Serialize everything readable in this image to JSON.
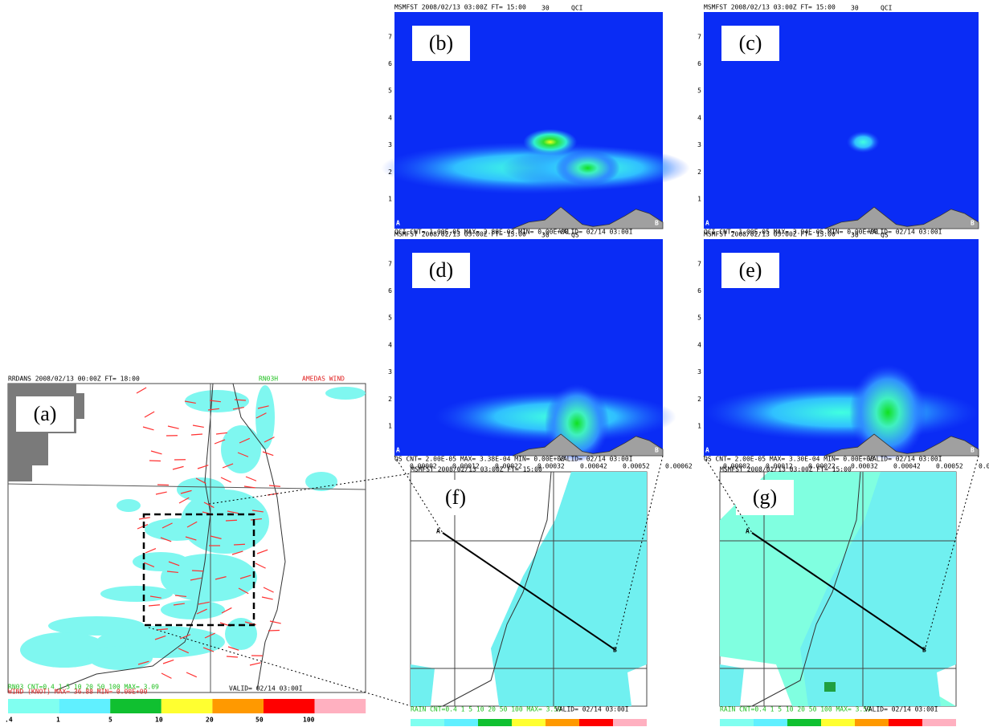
{
  "panel_a": {
    "label": "(a)",
    "header": "RRDANS 2008/02/13 00:00Z FT= 18:00",
    "field": "RN03H",
    "obs": "AMEDAS WIND",
    "footer_1": "RN03   CNT=0.4 1 5 10 20 50 100   MAX=     3.09",
    "footer_2": "WIND    (KNOT)     MAX=     36.88 MIN= 0.00E+00",
    "valid": "VALID= 02/14 03:00I",
    "colorbar_labels": [
      ".4",
      "1",
      "5",
      "10",
      "20",
      "50",
      "100"
    ]
  },
  "cross_sections": [
    {
      "label": "(b)",
      "header": "MSMFST 2008/02/13 03:00Z FT= 15:00",
      "level": "30",
      "field": "QCI",
      "footer": "QCI   CNT= 1.00E-05 MAX= 2.88E-03 MIN= 0.00E+00",
      "valid": "VALID= 02/14 03:00I",
      "end_a": "A",
      "end_b": "B"
    },
    {
      "label": "(c)",
      "header": "MSMFST 2008/02/13 03:00Z FT= 15:00",
      "level": "30",
      "field": "QCI",
      "footer": "QCI   CNT= 1.00E-05 MAX= 3.94E-05 MIN= 0.00E+00",
      "valid": "VALID= 02/14 03:00I",
      "end_a": "A",
      "end_b": "B"
    },
    {
      "label": "(d)",
      "header": "MSMFST 2008/02/13 03:00Z FT= 15:00",
      "level": "30",
      "field": "QS",
      "footer": "QS   CNT= 2.00E-05 MAX= 3.38E-04 MIN= 0.00E+00",
      "valid": "VALID= 02/14 03:00I",
      "end_a": "A",
      "end_b": "B"
    },
    {
      "label": "(e)",
      "header": "MSMFST 2008/02/13 03:00Z FT= 15:00",
      "level": "30",
      "field": "QS",
      "footer": "QS   CNT= 2.00E-05 MAX= 3.30E-04 MIN= 0.00E+00",
      "valid": "VALID= 02/14 03:00I",
      "end_a": "A",
      "end_b": "B"
    }
  ],
  "height_ticks": [
    "1",
    "2",
    "3",
    "4",
    "5",
    "6",
    "7"
  ],
  "qs_colorbar_labels": [
    "0.00002",
    "0.00012",
    "0.00022",
    "0.00032",
    "0.00042",
    "0.00052",
    "0.00062"
  ],
  "maps": [
    {
      "label": "(f)",
      "header": "MSMFST 2008/02/13 03:00Z FT= 15:00",
      "footer": "RAIN   CNT=0.4 1 5 10 20 50 100   MAX=   3.59",
      "valid": "VALID= 02/14 03:00I",
      "point_a": "A",
      "point_b": "B"
    },
    {
      "label": "(g)",
      "header": "MSMFST 2008/02/13 03:00Z FT= 15:00",
      "footer": "RAIN   CNT=0.4 1 5 10 20 50 100   MAX=   3.59",
      "valid": "VALID= 02/14 03:00I",
      "point_a": "A",
      "point_b": "B"
    }
  ]
}
